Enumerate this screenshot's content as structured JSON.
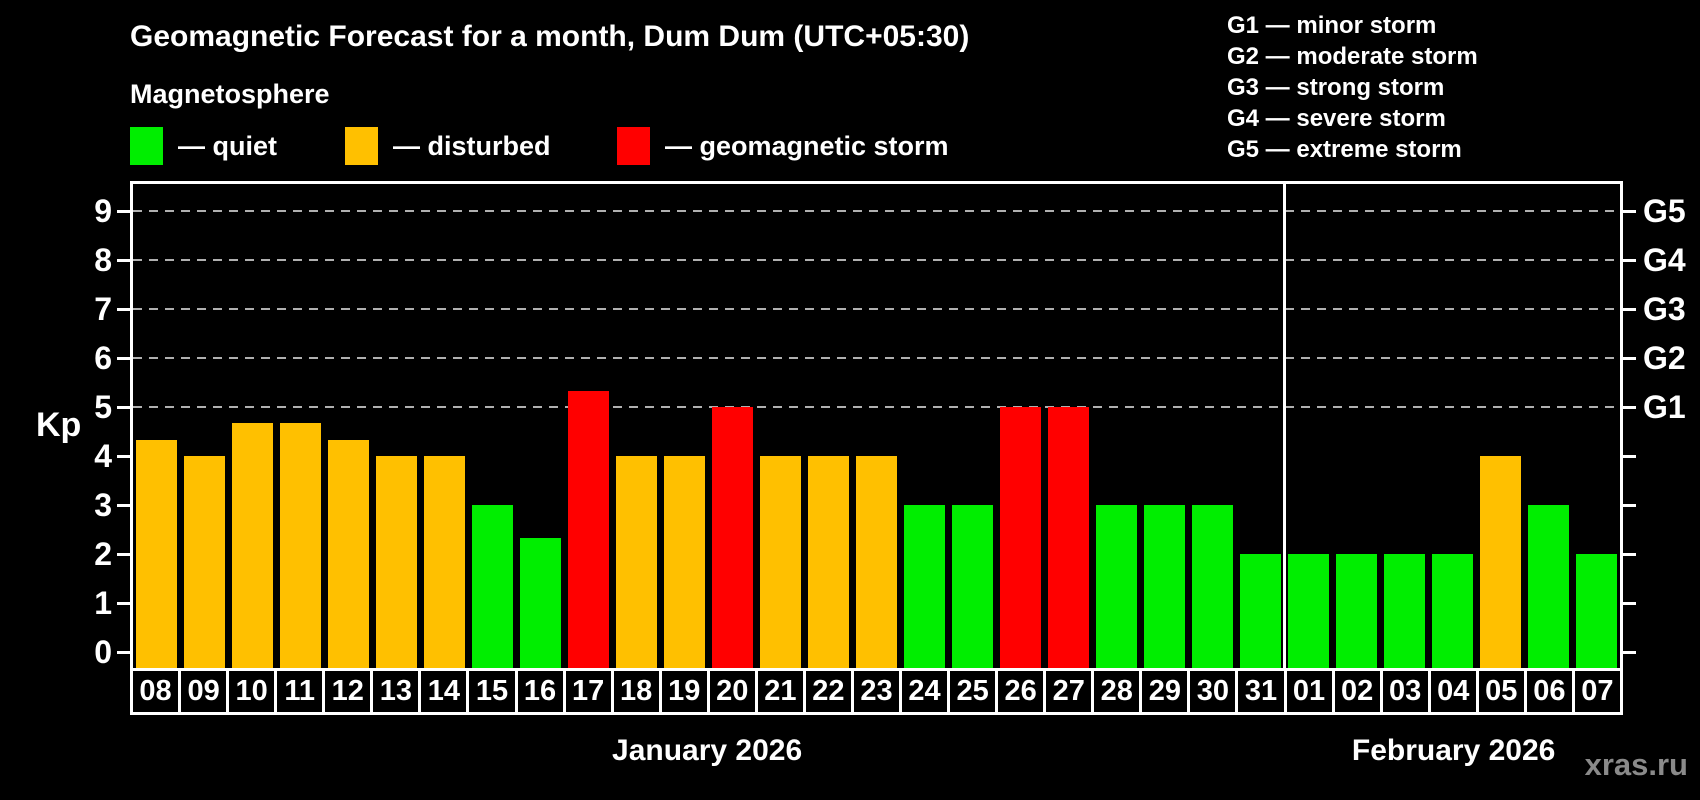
{
  "header": {
    "title": "Geomagnetic Forecast for a month, Dum Dum (UTC+05:30)",
    "subtitle": "Magnetosphere"
  },
  "legend": {
    "items": [
      {
        "state": "quiet",
        "label": "— quiet"
      },
      {
        "state": "disturbed",
        "label": "— disturbed"
      },
      {
        "state": "storm",
        "label": "— geomagnetic storm"
      }
    ]
  },
  "g_legend": [
    "G1 — minor storm",
    "G2 — moderate storm",
    "G3 — strong storm",
    "G4 — severe storm",
    "G5 — extreme storm"
  ],
  "colors": {
    "quiet": "#00ee00",
    "disturbed": "#ffc000",
    "storm": "#ff0000",
    "background": "#000000",
    "axis": "#ffffff",
    "gridline": "#b0b0b0",
    "watermark": "#8a8a8a"
  },
  "axis": {
    "y_label": "Kp",
    "y_ticks": [
      0,
      1,
      2,
      3,
      4,
      5,
      6,
      7,
      8,
      9
    ],
    "right_labels": [
      {
        "text": "G1",
        "kp": 5
      },
      {
        "text": "G2",
        "kp": 6
      },
      {
        "text": "G3",
        "kp": 7
      },
      {
        "text": "G4",
        "kp": 8
      },
      {
        "text": "G5",
        "kp": 9
      }
    ]
  },
  "months": [
    {
      "label": "January 2026",
      "days": 24
    },
    {
      "label": "February 2026",
      "days": 7
    }
  ],
  "watermark": "xras.ru",
  "chart_data": {
    "type": "bar",
    "title": "Geomagnetic Forecast for a month, Dum Dum (UTC+05:30)",
    "ylabel": "Kp",
    "ylim": [
      0,
      9.5
    ],
    "grid": "dashed horizontal lines at Kp 5-9 (storm levels G1-G5) only",
    "legend_position": "top",
    "categories": [
      "08",
      "09",
      "10",
      "11",
      "12",
      "13",
      "14",
      "15",
      "16",
      "17",
      "18",
      "19",
      "20",
      "21",
      "22",
      "23",
      "24",
      "25",
      "26",
      "27",
      "28",
      "29",
      "30",
      "31",
      "01",
      "02",
      "03",
      "04",
      "05",
      "06",
      "07"
    ],
    "values": [
      4.33,
      4,
      4.67,
      4.67,
      4.33,
      4,
      4,
      3,
      2.33,
      5.33,
      4,
      4,
      5,
      4,
      4,
      4,
      3,
      3,
      5,
      5,
      3,
      3,
      3,
      2,
      2,
      2,
      2,
      2,
      4,
      3,
      2
    ],
    "bars": [
      {
        "day": "08",
        "kp": 4.33,
        "state": "disturbed"
      },
      {
        "day": "09",
        "kp": 4,
        "state": "disturbed"
      },
      {
        "day": "10",
        "kp": 4.67,
        "state": "disturbed"
      },
      {
        "day": "11",
        "kp": 4.67,
        "state": "disturbed"
      },
      {
        "day": "12",
        "kp": 4.33,
        "state": "disturbed"
      },
      {
        "day": "13",
        "kp": 4,
        "state": "disturbed"
      },
      {
        "day": "14",
        "kp": 4,
        "state": "disturbed"
      },
      {
        "day": "15",
        "kp": 3,
        "state": "quiet"
      },
      {
        "day": "16",
        "kp": 2.33,
        "state": "quiet"
      },
      {
        "day": "17",
        "kp": 5.33,
        "state": "storm"
      },
      {
        "day": "18",
        "kp": 4,
        "state": "disturbed"
      },
      {
        "day": "19",
        "kp": 4,
        "state": "disturbed"
      },
      {
        "day": "20",
        "kp": 5,
        "state": "storm"
      },
      {
        "day": "21",
        "kp": 4,
        "state": "disturbed"
      },
      {
        "day": "22",
        "kp": 4,
        "state": "disturbed"
      },
      {
        "day": "23",
        "kp": 4,
        "state": "disturbed"
      },
      {
        "day": "24",
        "kp": 3,
        "state": "quiet"
      },
      {
        "day": "25",
        "kp": 3,
        "state": "quiet"
      },
      {
        "day": "26",
        "kp": 5,
        "state": "storm"
      },
      {
        "day": "27",
        "kp": 5,
        "state": "storm"
      },
      {
        "day": "28",
        "kp": 3,
        "state": "quiet"
      },
      {
        "day": "29",
        "kp": 3,
        "state": "quiet"
      },
      {
        "day": "30",
        "kp": 3,
        "state": "quiet"
      },
      {
        "day": "31",
        "kp": 2,
        "state": "quiet"
      },
      {
        "day": "01",
        "kp": 2,
        "state": "quiet"
      },
      {
        "day": "02",
        "kp": 2,
        "state": "quiet"
      },
      {
        "day": "03",
        "kp": 2,
        "state": "quiet"
      },
      {
        "day": "04",
        "kp": 2,
        "state": "quiet"
      },
      {
        "day": "05",
        "kp": 4,
        "state": "disturbed"
      },
      {
        "day": "06",
        "kp": 3,
        "state": "quiet"
      },
      {
        "day": "07",
        "kp": 2,
        "state": "quiet"
      }
    ]
  }
}
